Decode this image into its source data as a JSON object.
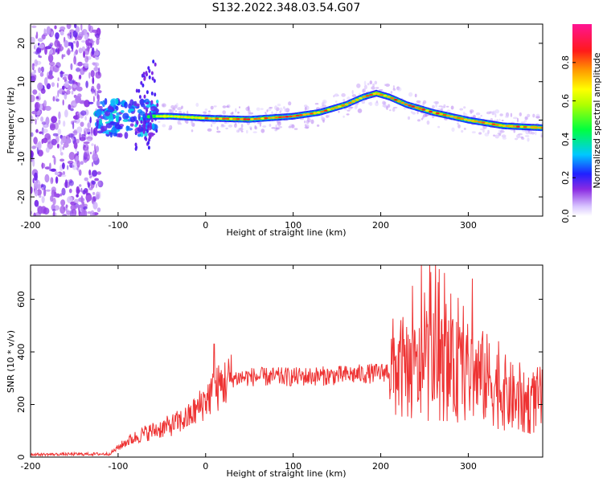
{
  "title": "S132.2022.348.03.54.G07",
  "colors": {
    "snr_line": "#ee3333",
    "frame": "#000000",
    "noise_purple": "#7a3cf0"
  },
  "chart_data": [
    {
      "type": "heatmap",
      "title": "S132.2022.348.03.54.G07",
      "xlabel": "Height of straight line (km)",
      "ylabel": "Frequency (Hz)",
      "xlim": [
        -200,
        385
      ],
      "ylim": [
        -25,
        25
      ],
      "xticks": [
        -200,
        -100,
        0,
        100,
        200,
        300
      ],
      "yticks": [
        -20,
        -10,
        0,
        10,
        20
      ],
      "colorbar": {
        "label": "Normalized spectral amplitude",
        "range": [
          0,
          1
        ],
        "ticks": [
          0.0,
          0.2,
          0.4,
          0.6,
          0.8
        ],
        "colormap": "rainbow"
      },
      "signal_track": {
        "x": [
          -120,
          -80,
          -60,
          -40,
          0,
          50,
          100,
          130,
          160,
          180,
          195,
          210,
          230,
          260,
          300,
          340,
          385
        ],
        "frequency": [
          0.5,
          0.5,
          1,
          1,
          0.5,
          0.2,
          1,
          2,
          4,
          6,
          7,
          6,
          4,
          2,
          0,
          -1.5,
          -2
        ]
      },
      "noise_region_x": [
        -200,
        -120
      ]
    },
    {
      "type": "line",
      "xlabel": "Height of straight line (km)",
      "ylabel": "SNR (10 * v/v)",
      "xlim": [
        -200,
        385
      ],
      "ylim": [
        0,
        730
      ],
      "xticks": [
        -200,
        -100,
        0,
        100,
        200,
        300
      ],
      "yticks": [
        0,
        200,
        400,
        600
      ],
      "envelope": {
        "x": [
          -200,
          -110,
          -90,
          -70,
          -40,
          -20,
          -10,
          0,
          10,
          20,
          30,
          50,
          100,
          150,
          200,
          220,
          240,
          260,
          280,
          300,
          320,
          340,
          360,
          385
        ],
        "y": [
          10,
          12,
          60,
          90,
          120,
          150,
          180,
          220,
          250,
          280,
          300,
          305,
          305,
          310,
          320,
          340,
          320,
          350,
          330,
          320,
          300,
          250,
          200,
          220
        ]
      }
    }
  ]
}
